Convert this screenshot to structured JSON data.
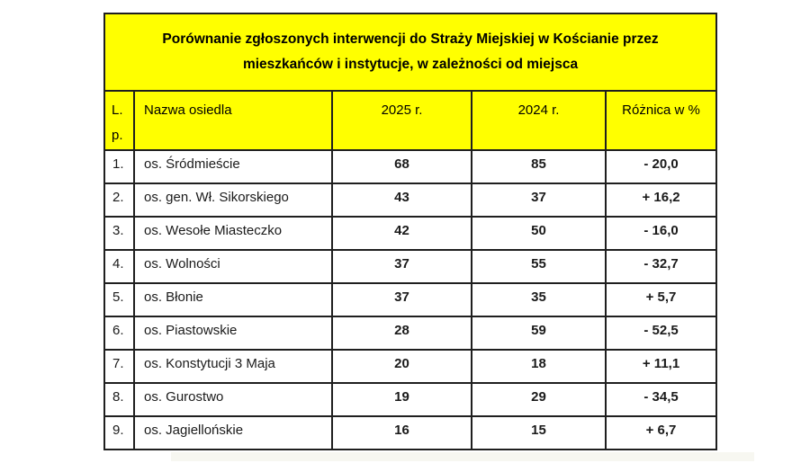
{
  "title": "Porównanie zgłoszonych interwencji do Straży Miejskiej w Kościanie przez\nmieszkańców i instytucje, w zależności od miejsca",
  "table": {
    "columns": [
      "L.\np.",
      "Nazwa osiedla",
      "2025 r.",
      "2024 r.",
      "Różnica w %"
    ],
    "rows": [
      [
        "1.",
        "os. Śródmieście",
        "68",
        "85",
        "- 20,0"
      ],
      [
        "2.",
        "os. gen. Wł. Sikorskiego",
        "43",
        "37",
        "+ 16,2"
      ],
      [
        "3.",
        "os. Wesołe Miasteczko",
        "42",
        "50",
        "- 16,0"
      ],
      [
        "4.",
        "os. Wolności",
        "37",
        "55",
        "- 32,7"
      ],
      [
        "5.",
        "os. Błonie",
        "37",
        "35",
        "+ 5,7"
      ],
      [
        "6.",
        "os. Piastowskie",
        "28",
        "59",
        "- 52,5"
      ],
      [
        "7.",
        "os. Konstytucji 3 Maja",
        "20",
        "18",
        "+ 11,1"
      ],
      [
        "8.",
        "os. Gurostwo",
        "19",
        "29",
        "- 34,5"
      ],
      [
        "9.",
        "os. Jagiellońskie",
        "16",
        "15",
        "+ 6,7"
      ]
    ]
  },
  "colors": {
    "header_bg": "#ffff00",
    "border": "#1f1f1f",
    "text": "#000000"
  }
}
